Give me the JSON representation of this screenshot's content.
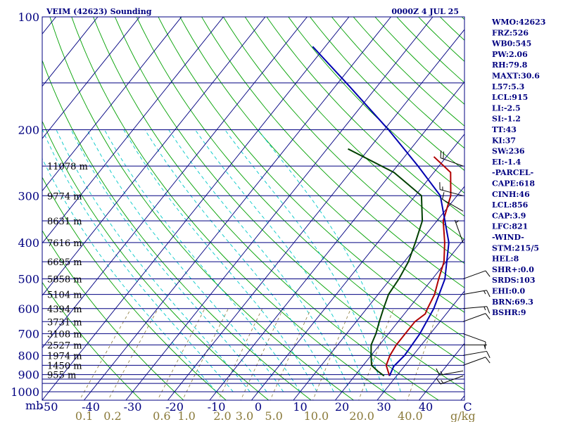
{
  "chart_data": {
    "type": "skew-t sounding",
    "title": "VEIM (42623) Sounding",
    "time": "0000Z  4 JUL 25",
    "p_axis": {
      "unit_label": "mb",
      "range": [
        100,
        1000
      ],
      "scale": "log",
      "labels": [
        "100",
        "200",
        "300",
        "400",
        "500",
        "600",
        "700",
        "800",
        "900",
        "1000"
      ],
      "label_pressures": [
        100,
        200,
        300,
        400,
        500,
        600,
        700,
        800,
        900,
        1000
      ],
      "levels": [
        100,
        150,
        200,
        250,
        300,
        350,
        400,
        450,
        500,
        550,
        600,
        650,
        700,
        750,
        800,
        850,
        900,
        925,
        950,
        1000
      ]
    },
    "t_axis": {
      "labels": [
        "-50",
        "-40",
        "-30",
        "-20",
        "-10",
        "0",
        "10",
        "20",
        "30",
        "40",
        "C"
      ],
      "values": [
        -50,
        -40,
        -30,
        -20,
        -10,
        0,
        10,
        20,
        30,
        40,
        50
      ]
    },
    "mixing_ratio_axis": {
      "unit_label": "g/kg",
      "labels": [
        "0.1",
        "0.2",
        "0.6",
        "1.0",
        "2.0",
        "3.0",
        "5.0",
        "10.0",
        "20.0",
        "40.0"
      ],
      "values": [
        0.1,
        0.2,
        0.6,
        1.0,
        2.0,
        3.0,
        5.0,
        10.0,
        20.0,
        40.0
      ]
    },
    "height_labels": [
      {
        "p": 250,
        "text": "11078 m"
      },
      {
        "p": 300,
        "text": "9774 m"
      },
      {
        "p": 350,
        "text": "8631 m"
      },
      {
        "p": 400,
        "text": "7616 m"
      },
      {
        "p": 450,
        "text": "6695 m"
      },
      {
        "p": 500,
        "text": "5858 m"
      },
      {
        "p": 550,
        "text": "5104 m"
      },
      {
        "p": 600,
        "text": "4394 m"
      },
      {
        "p": 650,
        "text": "3731 m"
      },
      {
        "p": 700,
        "text": "3108 m"
      },
      {
        "p": 750,
        "text": "2527 m"
      },
      {
        "p": 800,
        "text": "1974 m"
      },
      {
        "p": 850,
        "text": "1450 m"
      },
      {
        "p": 900,
        "text": "955 m"
      }
    ],
    "series": [
      {
        "color": "#b00000",
        "points": [
          [
            907,
            28.3
          ],
          [
            880,
            27.0
          ],
          [
            850,
            25.5
          ],
          [
            800,
            24.5
          ],
          [
            750,
            24.0
          ],
          [
            700,
            24.0
          ],
          [
            650,
            24.0
          ],
          [
            620,
            25.0
          ],
          [
            600,
            24.5
          ],
          [
            550,
            23.5
          ],
          [
            500,
            21.5
          ],
          [
            450,
            19.5
          ],
          [
            400,
            16.0
          ],
          [
            350,
            11.5
          ],
          [
            300,
            8.5
          ],
          [
            260,
            4.0
          ],
          [
            236,
            -3.0
          ]
        ]
      },
      {
        "color": "#004000",
        "points": [
          [
            907,
            27.0
          ],
          [
            880,
            24.5
          ],
          [
            850,
            22.0
          ],
          [
            800,
            20.0
          ],
          [
            750,
            18.0
          ],
          [
            700,
            17.0
          ],
          [
            650,
            15.5
          ],
          [
            600,
            14.0
          ],
          [
            550,
            12.5
          ],
          [
            500,
            12.0
          ],
          [
            450,
            11.0
          ],
          [
            400,
            9.0
          ],
          [
            350,
            6.5
          ],
          [
            300,
            1.5
          ],
          [
            260,
            -9.5
          ],
          [
            225,
            -25.0
          ]
        ]
      },
      {
        "color": "#0000b0",
        "points": [
          [
            907,
            28.3
          ],
          [
            856,
            27.5
          ],
          [
            800,
            28.0
          ],
          [
            700,
            27.5
          ],
          [
            600,
            26.0
          ],
          [
            500,
            23.0
          ],
          [
            400,
            17.0
          ],
          [
            300,
            6.0
          ],
          [
            250,
            -5.0
          ],
          [
            200,
            -19.0
          ],
          [
            150,
            -38.0
          ],
          [
            120,
            -53.0
          ]
        ]
      }
    ],
    "wind_barbs": [
      {
        "p": 250,
        "dir": 290,
        "spd": 20
      },
      {
        "p": 300,
        "dir": 285,
        "spd": 15
      },
      {
        "p": 330,
        "dir": 300,
        "spd": 10
      },
      {
        "p": 400,
        "dir": 340,
        "spd": 5
      },
      {
        "p": 500,
        "dir": 70,
        "spd": 10
      },
      {
        "p": 550,
        "dir": 80,
        "spd": 15
      },
      {
        "p": 600,
        "dir": 85,
        "spd": 15
      },
      {
        "p": 650,
        "dir": 70,
        "spd": 10
      },
      {
        "p": 700,
        "dir": 110,
        "spd": 10
      },
      {
        "p": 750,
        "dir": 90,
        "spd": 5
      },
      {
        "p": 800,
        "dir": 80,
        "spd": 10
      },
      {
        "p": 850,
        "dir": 70,
        "spd": 10
      },
      {
        "p": 880,
        "dir": 260,
        "spd": 15
      },
      {
        "p": 907,
        "dir": 250,
        "spd": 15
      }
    ],
    "indices": [
      "WMO:42623",
      "FRZ:526",
      "WB0:545",
      "PW:2.06",
      "RH:79.8",
      "MAXT:30.6",
      "L57:5.3",
      "LCL:915",
      "LI:-2.5",
      "SI:-1.2",
      "TT:43",
      "KI:37",
      "SW:236",
      "EI:-1.4",
      "-PARCEL-",
      "CAPE:618",
      "CINH:46",
      "LCL:856",
      "CAP:3.9",
      "LFC:821",
      "-WIND-",
      "STM:215/5",
      "HEL:8",
      "SHR+:0.0",
      "SRDS:103",
      "EHI:0.0",
      "BRN:69.3",
      "BSHR:9"
    ],
    "colors": {
      "background": "#ffffff",
      "frame": "#000080",
      "isobar": "#000080",
      "isotherm": "#000080",
      "dry_adiabat": "#00a000",
      "moist_adiabat": "#00c8c8",
      "mixing_ratio": "#8a7a3a",
      "tick_label": "#000080",
      "mixing_label": "#8a7a3a"
    }
  }
}
